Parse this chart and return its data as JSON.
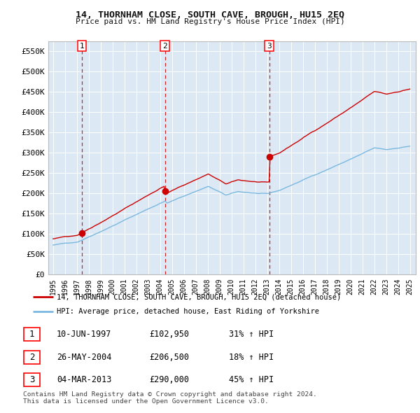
{
  "title": "14, THORNHAM CLOSE, SOUTH CAVE, BROUGH, HU15 2EQ",
  "subtitle": "Price paid vs. HM Land Registry's House Price Index (HPI)",
  "fig_bg_color": "#ffffff",
  "plot_bg_color": "#dce8f4",
  "legend_line1": "14, THORNHAM CLOSE, SOUTH CAVE, BROUGH, HU15 2EQ (detached house)",
  "legend_line2": "HPI: Average price, detached house, East Riding of Yorkshire",
  "transactions": [
    {
      "label": "1",
      "date": "10-JUN-1997",
      "price": 102950,
      "year": 1997.44,
      "pct": "31% ↑ HPI"
    },
    {
      "label": "2",
      "date": "26-MAY-2004",
      "price": 206500,
      "year": 2004.4,
      "pct": "18% ↑ HPI"
    },
    {
      "label": "3",
      "date": "04-MAR-2013",
      "price": 290000,
      "year": 2013.17,
      "pct": "45% ↑ HPI"
    }
  ],
  "footnote1": "Contains HM Land Registry data © Crown copyright and database right 2024.",
  "footnote2": "This data is licensed under the Open Government Licence v3.0.",
  "hpi_color": "#7ab8e0",
  "price_color": "#cc0000",
  "vline_color": "#cc0000",
  "ylim": [
    0,
    575000
  ],
  "yticks": [
    0,
    50000,
    100000,
    150000,
    200000,
    250000,
    300000,
    350000,
    400000,
    450000,
    500000,
    550000
  ],
  "xlim_start": 1994.6,
  "xlim_end": 2025.5
}
